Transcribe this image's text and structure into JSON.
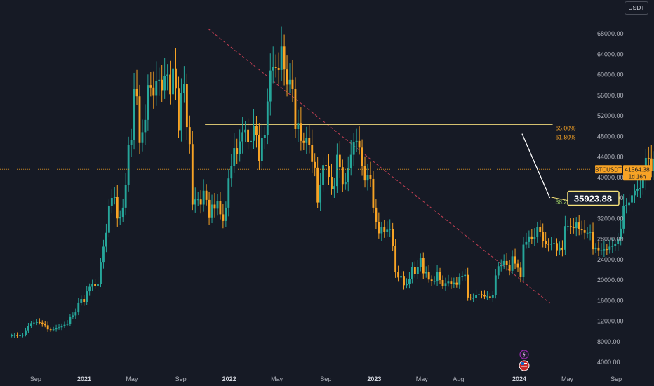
{
  "currency_button": "USDT",
  "colors": {
    "background": "#161a25",
    "up": "#26a69a",
    "down": "#f7a325",
    "fib_line": "#f0d97a",
    "trendline": "#e0455a",
    "target": "#f7e27a"
  },
  "chart_data": {
    "type": "candlestick",
    "symbol": "BTCUSDT",
    "interval": "1 week",
    "ylim": [
      2000,
      71000
    ],
    "y_ticks": [
      4000,
      8000,
      12000,
      16000,
      20000,
      24000,
      28000,
      32000,
      36000,
      40000,
      44000,
      48000,
      52000,
      56000,
      60000,
      64000,
      68000
    ],
    "y_tick_labels": [
      "4000.00",
      "8000.00",
      "12000.00",
      "16000.00",
      "20000.00",
      "24000.00",
      "28000.00",
      "32000.00",
      "36000.00",
      "40000.00",
      "44000.00",
      "48000.00",
      "52000.00",
      "56000.00",
      "60000.00",
      "64000.00",
      "68000.00"
    ],
    "x_start": "2020-06-29",
    "x_end": "2024-09-30",
    "x_ticks": [
      {
        "label": "Sep",
        "date": "2020-09-01",
        "bold": false
      },
      {
        "label": "2021",
        "date": "2021-01-01",
        "bold": true
      },
      {
        "label": "May",
        "date": "2021-05-01",
        "bold": false
      },
      {
        "label": "Sep",
        "date": "2021-09-01",
        "bold": false
      },
      {
        "label": "2022",
        "date": "2022-01-01",
        "bold": true
      },
      {
        "label": "May",
        "date": "2022-05-01",
        "bold": false
      },
      {
        "label": "Sep",
        "date": "2022-09-01",
        "bold": false
      },
      {
        "label": "2023",
        "date": "2023-01-01",
        "bold": true
      },
      {
        "label": "May",
        "date": "2023-05-01",
        "bold": false
      },
      {
        "label": "Aug",
        "date": "2023-08-01",
        "bold": false
      },
      {
        "label": "2024",
        "date": "2024-01-01",
        "bold": true
      },
      {
        "label": "May",
        "date": "2024-05-01",
        "bold": false
      },
      {
        "label": "Sep",
        "date": "2024-09-01",
        "bold": false
      }
    ],
    "close_series": [
      9200,
      9300,
      9100,
      9200,
      9300,
      10200,
      11000,
      11600,
      11700,
      11800,
      11700,
      11400,
      11200,
      10400,
      10300,
      10400,
      10700,
      10800,
      11100,
      11300,
      11500,
      12900,
      13100,
      13700,
      15500,
      16300,
      15700,
      17800,
      18700,
      19200,
      18800,
      19300,
      23400,
      26500,
      29200,
      34500,
      36000,
      36200,
      32000,
      32300,
      34100,
      38600,
      46300,
      47300,
      57200,
      55800,
      46700,
      48800,
      51200,
      58000,
      57500,
      55900,
      58800,
      59000,
      57000,
      59700,
      60000,
      56200,
      61200,
      57300,
      49200,
      56500,
      58200,
      49800,
      46500,
      34700,
      35700,
      35700,
      34700,
      37400,
      35600,
      32200,
      34700,
      33900,
      35400,
      32800,
      31500,
      34100,
      39800,
      42200,
      45700,
      44600,
      47000,
      48800,
      49300,
      46800,
      47100,
      50000,
      48200,
      43200,
      47700,
      48200,
      54800,
      60800,
      61500,
      61300,
      60900,
      65500,
      61000,
      58100,
      59000,
      57200,
      49400,
      50600,
      47100,
      46700,
      47700,
      46300,
      43000,
      41900,
      35100,
      38600,
      42400,
      42200,
      40100,
      37700,
      38300,
      44400,
      42000,
      38700,
      39100,
      41800,
      44400,
      46800,
      47100,
      45800,
      42200,
      39400,
      40400,
      39700,
      34100,
      31300,
      29100,
      30300,
      29400,
      29800,
      29900,
      26600,
      21500,
      20500,
      20800,
      19000,
      19300,
      20200,
      22500,
      21100,
      22500,
      24300,
      21300,
      21500,
      20100,
      19800,
      19800,
      21600,
      20000,
      18800,
      19400,
      19700,
      19200,
      19500,
      19100,
      20600,
      20800,
      21000,
      16600,
      16500,
      16500,
      17100,
      17200,
      17100,
      16800,
      16800,
      16600,
      17100,
      20900,
      22700,
      23000,
      23700,
      23000,
      21800,
      24600,
      23200,
      22400,
      20600,
      26900,
      27400,
      28500,
      28000,
      28400,
      30300,
      29400,
      27600,
      27100,
      26900,
      27100,
      27200,
      25800,
      26300,
      25900,
      30500,
      30500,
      30300,
      30100,
      31200,
      29900,
      29700,
      29200,
      29200,
      29400,
      26000,
      26300,
      25800,
      25800,
      26000,
      25900,
      26500,
      26600,
      27100,
      27900,
      30000,
      34500,
      34600,
      35100,
      36500,
      37400,
      37700,
      37900,
      39500,
      43800,
      43700,
      41300,
      43600,
      42300,
      41500
    ]
  },
  "fib_levels": [
    {
      "label": "65.00%",
      "price": 50300
    },
    {
      "label": "61.80%",
      "price": 48650
    },
    {
      "label": "38.20%",
      "price": 36200
    }
  ],
  "price_label": {
    "symbol": "BTCUSDT",
    "price": "41564.38",
    "countdown": "1d 16h",
    "value": 41564.38
  },
  "target_label": {
    "text": "35923.88",
    "value": 35923.88
  },
  "trendline": {
    "start_date": "2021-11-08",
    "start_price": 69000,
    "end_date": "2024-03-18",
    "end_price": 15500
  },
  "projection": {
    "start_date": "2024-01-08",
    "start_price": 48500,
    "end_date": "2024-03-18",
    "end_price": 36000
  },
  "events": [
    {
      "icon": "lightning-icon",
      "date": "2024-01-01"
    },
    {
      "icon": "us-flag-icon",
      "date": "2024-01-01"
    }
  ]
}
